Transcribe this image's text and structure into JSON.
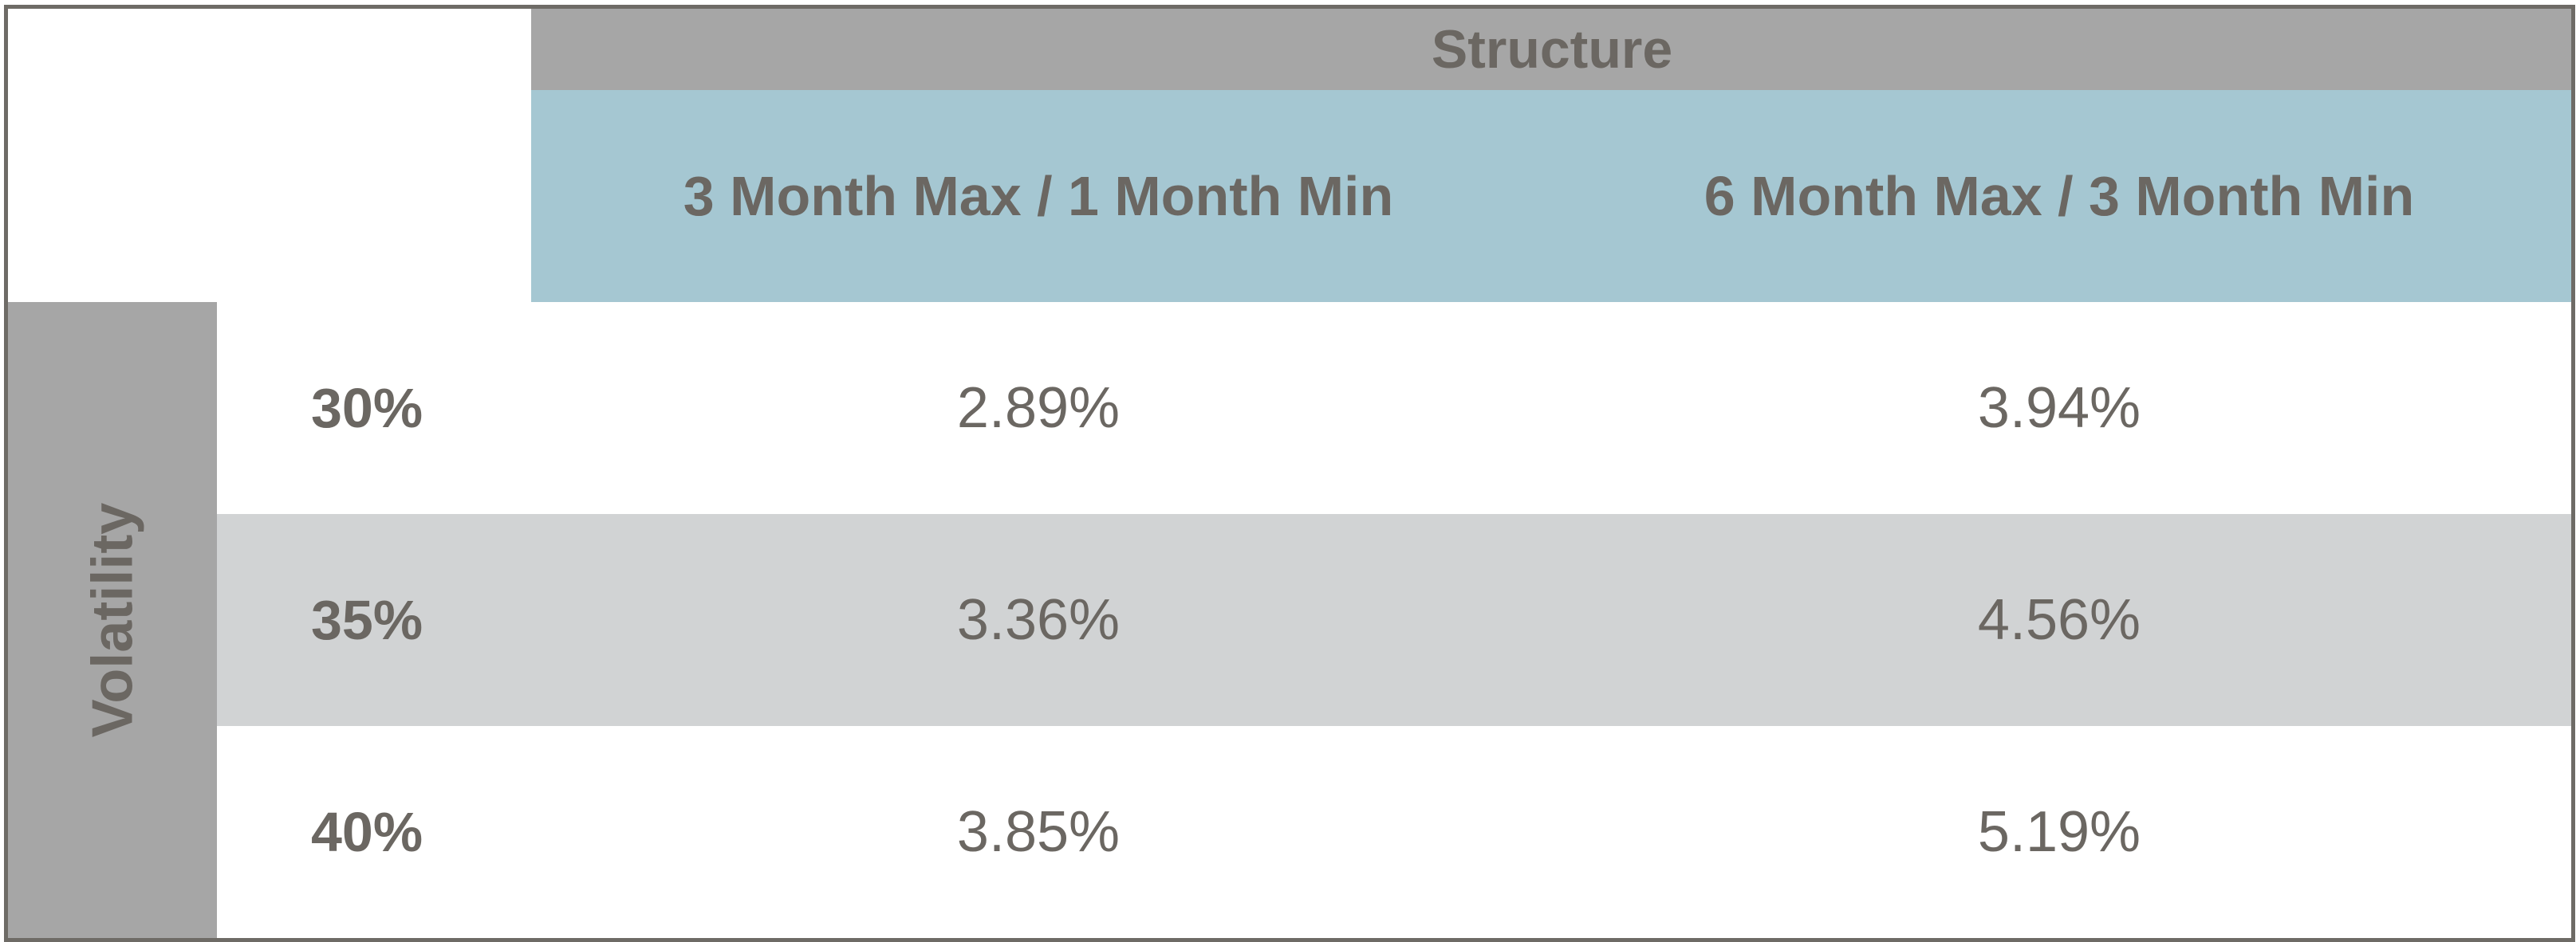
{
  "chart_data": {
    "type": "table",
    "column_group_header": "Structure",
    "row_group_header": "Volatility",
    "columns": [
      "3 Month Max / 1 Month Min",
      "6 Month Max / 3 Month Min"
    ],
    "rows": [
      {
        "label": "30%",
        "values": [
          "2.89%",
          "3.94%"
        ]
      },
      {
        "label": "35%",
        "values": [
          "3.36%",
          "4.56%"
        ]
      },
      {
        "label": "40%",
        "values": [
          "3.85%",
          "5.19%"
        ]
      }
    ],
    "colors": {
      "header_gray": "#a6a6a6",
      "header_blue": "#a5c7d2",
      "row_shade": "#d1d3d4",
      "text": "#6b6762",
      "border": "#6e6b66"
    }
  }
}
